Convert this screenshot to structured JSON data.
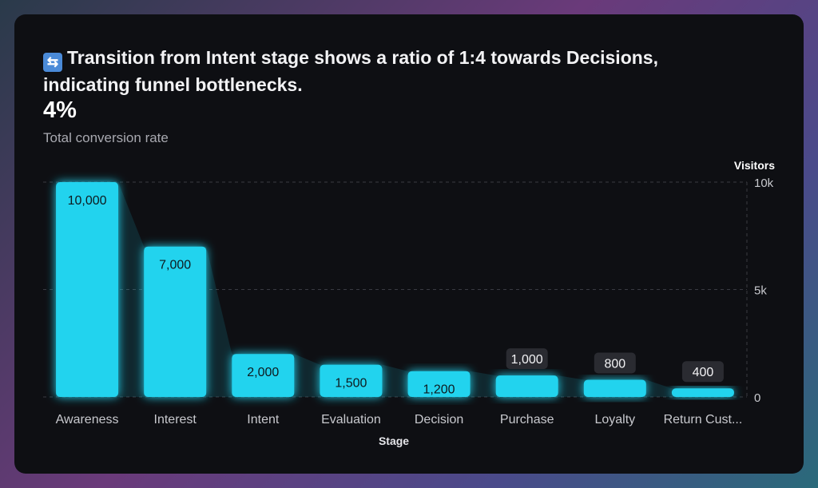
{
  "header": {
    "icon": "repeat-arrows-icon",
    "title": "Transition from Intent stage shows a ratio of 1:4 towards Decisions, indicating funnel bottlenecks.",
    "kpi": "4%",
    "kpi_label": "Total conversion rate"
  },
  "chart_data": {
    "type": "bar",
    "categories": [
      "Awareness",
      "Interest",
      "Intent",
      "Evaluation",
      "Decision",
      "Purchase",
      "Loyalty",
      "Return Cust..."
    ],
    "values": [
      10000,
      7000,
      2000,
      1500,
      1200,
      1000,
      800,
      400
    ],
    "data_labels": [
      "10,000",
      "7,000",
      "2,000",
      "1,500",
      "1,200",
      "1,000",
      "800",
      "400"
    ],
    "xlabel": "Stage",
    "ylabel": "Visitors",
    "ylim": [
      0,
      10000
    ],
    "yticks": [
      "0",
      "5k",
      "10k"
    ],
    "ytick_values": [
      0,
      5000,
      10000
    ],
    "grid": true,
    "bar_color": "#22d3ee"
  }
}
